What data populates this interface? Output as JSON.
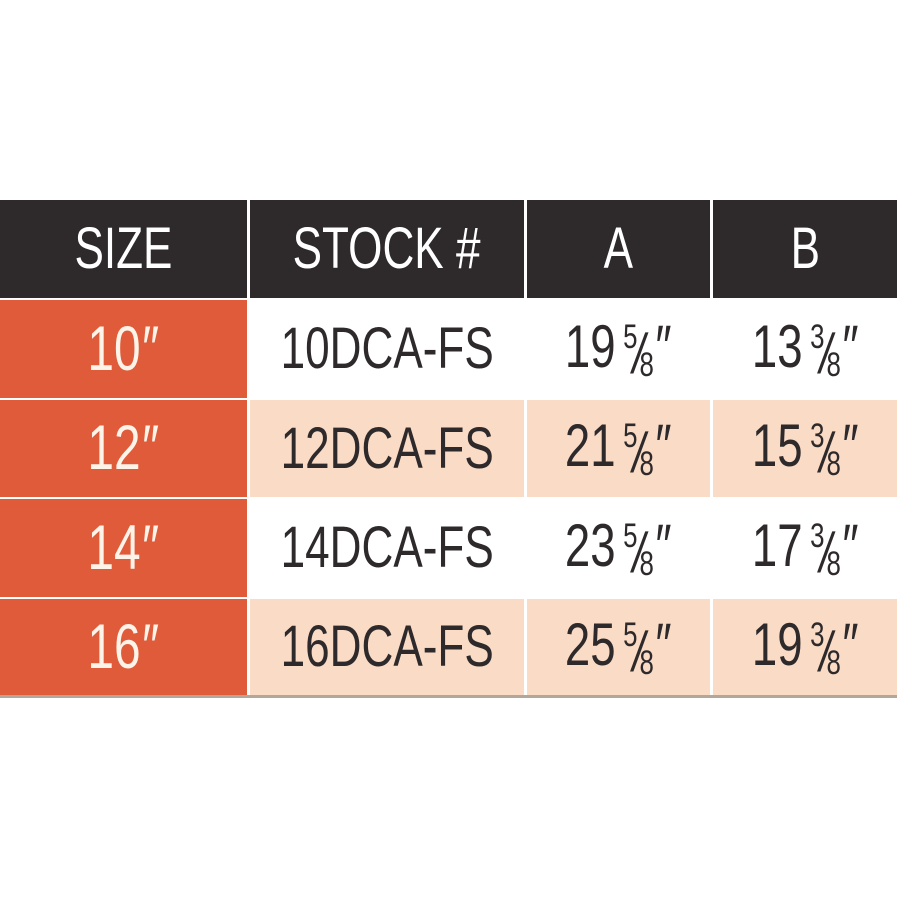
{
  "colors": {
    "page_background": "#ffffff",
    "header_background": "#2e2a2b",
    "size_column_background": "#e05b3a",
    "alt_row_background": "#f9dbc6",
    "row_background": "#ffffff",
    "header_text": "#ffffff",
    "size_text": "#fcf3e9",
    "data_text": "#2e2a2b",
    "table_bottom_border": "#a59886"
  },
  "table": {
    "columns": [
      "SIZE",
      "STOCK #",
      "A",
      "B"
    ],
    "inch_mark": "″",
    "fraction_slash": "/",
    "rows": [
      {
        "size": "10",
        "stock": "10DCA-FS",
        "a": {
          "whole": "19",
          "num": "5",
          "den": "8"
        },
        "b": {
          "whole": "13",
          "num": "3",
          "den": "8"
        }
      },
      {
        "size": "12",
        "stock": "12DCA-FS",
        "a": {
          "whole": "21",
          "num": "5",
          "den": "8"
        },
        "b": {
          "whole": "15",
          "num": "3",
          "den": "8"
        }
      },
      {
        "size": "14",
        "stock": "14DCA-FS",
        "a": {
          "whole": "23",
          "num": "5",
          "den": "8"
        },
        "b": {
          "whole": "17",
          "num": "3",
          "den": "8"
        }
      },
      {
        "size": "16",
        "stock": "16DCA-FS",
        "a": {
          "whole": "25",
          "num": "5",
          "den": "8"
        },
        "b": {
          "whole": "19",
          "num": "3",
          "den": "8"
        }
      }
    ]
  },
  "chart_data": {
    "type": "table",
    "columns": [
      "SIZE",
      "STOCK #",
      "A",
      "B"
    ],
    "rows": [
      [
        "10″",
        "10DCA-FS",
        "19 5/8″",
        "13 3/8″"
      ],
      [
        "12″",
        "12DCA-FS",
        "21 5/8″",
        "15 3/8″"
      ],
      [
        "14″",
        "14DCA-FS",
        "23 5/8″",
        "17 3/8″"
      ],
      [
        "16″",
        "16DCA-FS",
        "25 5/8″",
        "19 3/8″"
      ]
    ]
  }
}
